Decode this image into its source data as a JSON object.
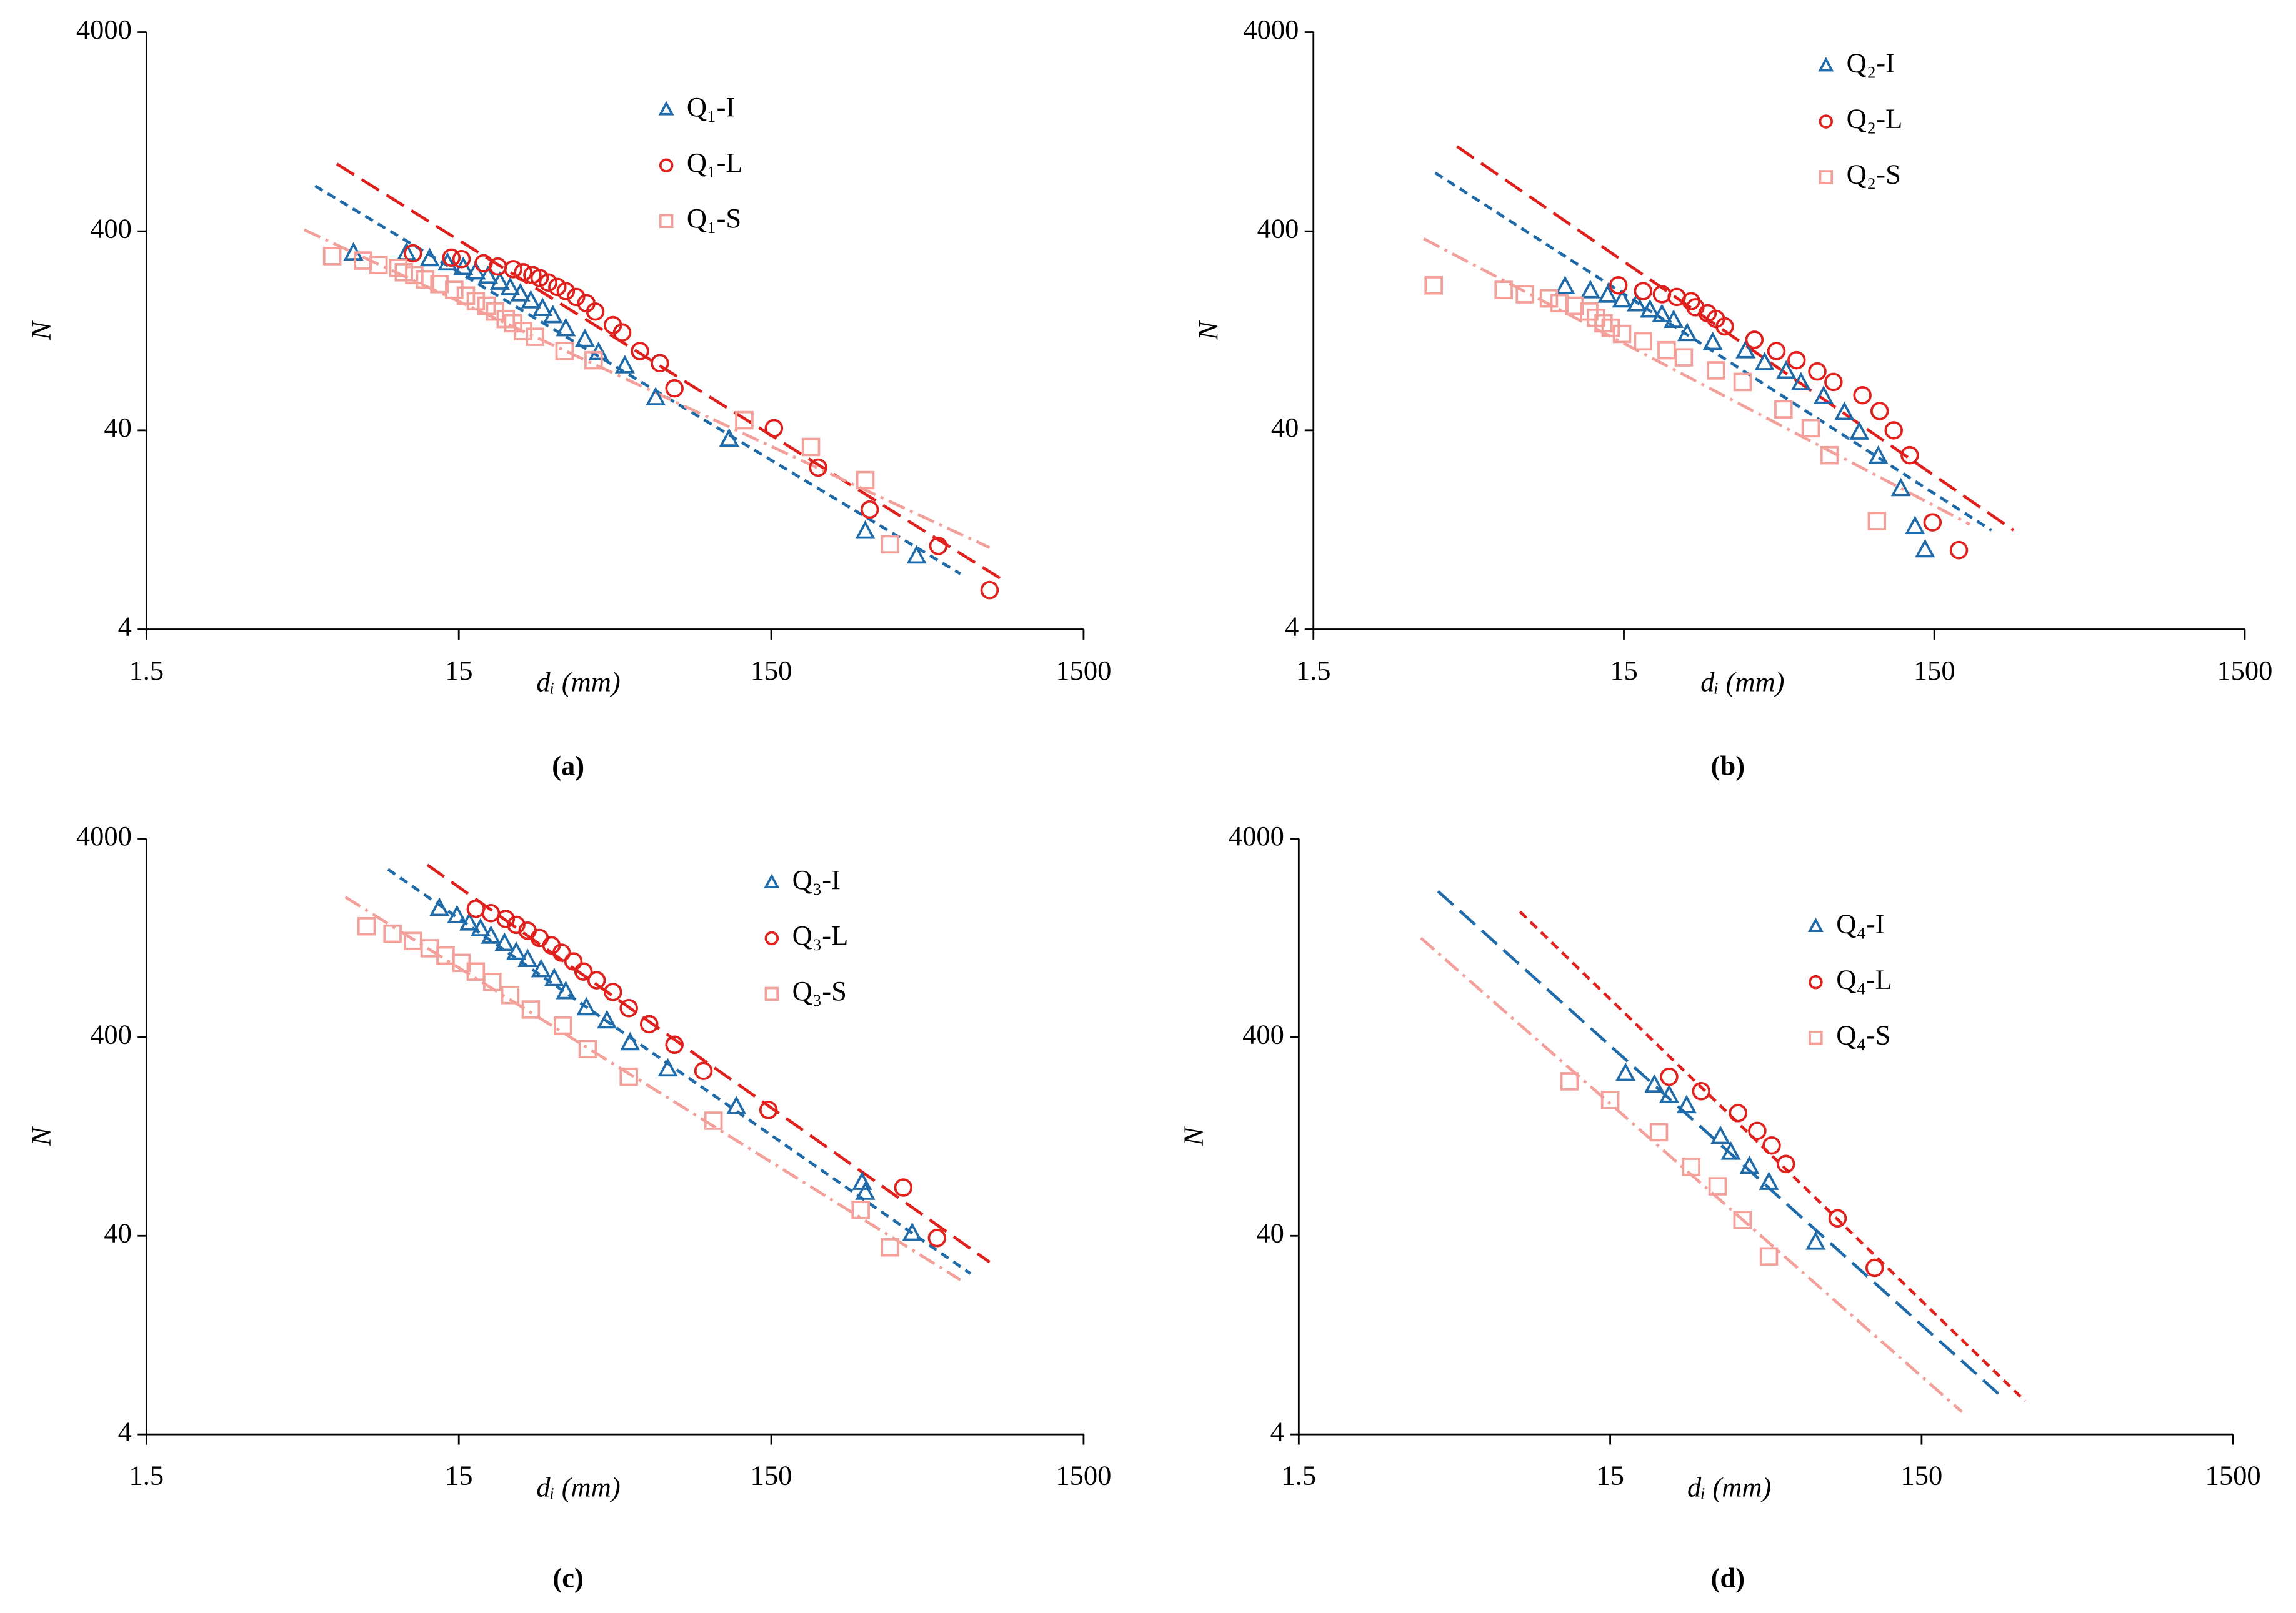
{
  "chart_data": [
    {
      "type": "scatter",
      "label": "(a)",
      "xlabel": "dᵢ (mm)",
      "ylabel": "N",
      "xlog": true,
      "ylog": true,
      "xlim": [
        1.5,
        1500
      ],
      "ylim": [
        4,
        4000
      ],
      "xticks": [
        1.5,
        15,
        150,
        1500
      ],
      "yticks": [
        4,
        40,
        400,
        4000
      ],
      "series": [
        {
          "name": "Q₁-I",
          "color": "#1f6aa8",
          "marker": "triangle",
          "x": [
            6.9,
            10.2,
            12.1,
            13.8,
            15.5,
            17,
            18.6,
            20.3,
            21.9,
            23.6,
            25.5,
            27.8,
            30,
            33,
            38,
            42,
            51,
            64,
            110,
            300,
            438
          ],
          "values": [
            310,
            310,
            290,
            276,
            262,
            249,
            237,
            221,
            207,
            193,
            178,
            163,
            150,
            129,
            114,
            98,
            84,
            58,
            36,
            12.4,
            9.3
          ]
        },
        {
          "name": "Q₁-L",
          "color": "#e0201c",
          "marker": "circle",
          "x": [
            10.7,
            14.2,
            15.3,
            18,
            20,
            22.4,
            24.1,
            25.8,
            27.2,
            29,
            31,
            33,
            35.6,
            38.4,
            41,
            46.7,
            50,
            57,
            66,
            73.5,
            153,
            212,
            310,
            514,
            750
          ],
          "values": [
            310,
            295,
            290,
            276,
            266,
            258,
            249,
            241,
            233,
            221,
            210,
            200,
            187,
            174,
            158,
            135,
            124,
            100,
            87,
            65,
            41,
            26,
            16,
            10.5,
            6.3
          ]
        },
        {
          "name": "Q₁-S",
          "color": "#f4a09a",
          "marker": "square",
          "x": [
            5.9,
            7.4,
            8.3,
            9.6,
            10,
            10.8,
            11.7,
            13,
            14.5,
            15.8,
            17,
            18.4,
            19.6,
            21.2,
            22.4,
            24.1,
            26.3,
            32.7,
            40.5,
            123,
            201,
            300,
            360
          ],
          "values": [
            300,
            285,
            271,
            262,
            249,
            241,
            229,
            217,
            203,
            190,
            178,
            169,
            158,
            145,
            138,
            126,
            118,
            100,
            90,
            45,
            33,
            22.5,
            10.7
          ]
        }
      ],
      "fits": [
        {
          "color": "#1f6aa8",
          "dash": "dashed",
          "x": [
            5.2,
            605
          ],
          "values": [
            676,
            7.6
          ]
        },
        {
          "color": "#e0201c",
          "dash": "long-dash",
          "x": [
            6.1,
            837
          ],
          "values": [
            872,
            7.0
          ]
        },
        {
          "color": "#f4a09a",
          "dash": "dash-dot",
          "x": [
            4.8,
            750
          ],
          "values": [
            407,
            10.3
          ]
        }
      ]
    },
    {
      "type": "scatter",
      "label": "(b)",
      "xlabel": "dᵢ (mm)",
      "ylabel": "N",
      "xlog": true,
      "ylog": true,
      "xlim": [
        1.5,
        1500
      ],
      "ylim": [
        4,
        4000
      ],
      "xticks": [
        1.5,
        15,
        150,
        1500
      ],
      "yticks": [
        4,
        40,
        400,
        4000
      ],
      "series": [
        {
          "name": "Q₂-I",
          "color": "#1f6aa8",
          "marker": "triangle",
          "x": [
            9.7,
            11.7,
            13.3,
            14.8,
            16.5,
            18.2,
            19.9,
            21.7,
            24,
            29,
            37,
            42.6,
            50,
            55.8,
            66,
            77,
            86,
            99,
            117,
            130,
            140
          ],
          "values": [
            210,
            200,
            190,
            180,
            172,
            160,
            152,
            142,
            122,
            110,
            100,
            87,
            79,
            69,
            59,
            49,
            39,
            29.5,
            20.3,
            13.1,
            10
          ]
        },
        {
          "name": "Q₂-L",
          "color": "#e0201c",
          "marker": "circle",
          "x": [
            14.4,
            17.3,
            19.9,
            22.2,
            24.7,
            25.5,
            27.9,
            29.7,
            31.7,
            39.5,
            46.5,
            54,
            63,
            71,
            88,
            100,
            111,
            125,
            148,
            180
          ],
          "values": [
            214,
            200,
            193,
            187,
            178,
            166,
            155,
            145,
            133,
            114,
            100,
            90,
            79,
            70,
            60,
            50,
            40,
            30,
            13.8,
            10
          ]
        },
        {
          "name": "Q₂-S",
          "color": "#f4a09a",
          "marker": "square",
          "x": [
            3.66,
            6.15,
            7.2,
            8.6,
            9.3,
            10.4,
            11.6,
            12.2,
            12.9,
            13.6,
            14.8,
            17.3,
            20.6,
            23.4,
            29.7,
            36.2,
            49,
            60,
            69,
            98
          ],
          "values": [
            214,
            203,
            193,
            184,
            174,
            169,
            158,
            147,
            138,
            131,
            122,
            112,
            101,
            93,
            80,
            70,
            51,
            41,
            30,
            14
          ]
        }
      ],
      "fits": [
        {
          "color": "#1f6aa8",
          "dash": "dashed",
          "x": [
            3.7,
            229
          ],
          "values": [
            787,
            12.6
          ]
        },
        {
          "color": "#e0201c",
          "dash": "long-dash",
          "x": [
            4.35,
            270
          ],
          "values": [
            1067,
            12.6
          ]
        },
        {
          "color": "#f4a09a",
          "dash": "dash-dot",
          "x": [
            3.4,
            195
          ],
          "values": [
            367,
            13.5
          ]
        }
      ]
    },
    {
      "type": "scatter",
      "label": "(c)",
      "xlabel": "dᵢ (mm)",
      "ylabel": "N",
      "xlog": true,
      "ylog": true,
      "xlim": [
        1.5,
        1500
      ],
      "ylim": [
        4,
        4000
      ],
      "xticks": [
        1.5,
        15,
        150,
        1500
      ],
      "yticks": [
        4,
        40,
        400,
        4000
      ],
      "series": [
        {
          "name": "Q₃-I",
          "color": "#1f6aa8",
          "marker": "triangle",
          "x": [
            13,
            14.8,
            16.2,
            17.6,
            19,
            21,
            22.9,
            24.9,
            27.5,
            30.3,
            33,
            38.4,
            44.7,
            53,
            70,
            116,
            293,
            300,
            424
          ],
          "values": [
            1775,
            1630,
            1499,
            1400,
            1286,
            1183,
            1067,
            982,
            872,
            787,
            676,
            561,
            482,
            374,
            276,
            178,
            74,
            66,
            41
          ]
        },
        {
          "name": "Q₃-L",
          "color": "#e0201c",
          "marker": "circle",
          "x": [
            17,
            19,
            21.2,
            22.9,
            24.9,
            27.2,
            29.7,
            32,
            34.9,
            37.6,
            41.4,
            46.7,
            52.5,
            61,
            73.5,
            91,
            147,
            397,
            509
          ],
          "values": [
            1775,
            1687,
            1577,
            1473,
            1377,
            1265,
            1161,
            1067,
            964,
            857,
            775,
            676,
            561,
            466,
            367,
            271,
            172,
            70,
            39
          ]
        },
        {
          "name": "Q₃-S",
          "color": "#f4a09a",
          "marker": "square",
          "x": [
            7.6,
            9.2,
            10.7,
            12.1,
            13.6,
            15.3,
            17,
            19.2,
            21.9,
            25.5,
            32.3,
            38.8,
            52.5,
            98,
            290,
            360
          ],
          "values": [
            1449,
            1330,
            1222,
            1123,
            1032,
            948,
            857,
            760,
            653,
            552,
            458,
            349,
            253,
            152,
            54,
            35
          ]
        }
      ],
      "fits": [
        {
          "color": "#1f6aa8",
          "dash": "dashed",
          "x": [
            8.9,
            652
          ],
          "values": [
            2805,
            25.8
          ]
        },
        {
          "color": "#e0201c",
          "dash": "long-dash",
          "x": [
            11.9,
            750
          ],
          "values": [
            2950,
            29.5
          ]
        },
        {
          "color": "#f4a09a",
          "dash": "dash-dot",
          "x": [
            6.5,
            605
          ],
          "values": [
            2032,
            24
          ]
        }
      ]
    },
    {
      "type": "scatter",
      "label": "(d)",
      "xlabel": "dᵢ (mm)",
      "ylabel": "N",
      "xlog": true,
      "ylog": true,
      "xlim": [
        1.5,
        1500
      ],
      "ylim": [
        4,
        4000
      ],
      "xticks": [
        1.5,
        15,
        150,
        1500
      ],
      "yticks": [
        4,
        40,
        400,
        4000
      ],
      "series": [
        {
          "name": "Q₄-I",
          "color": "#1f6aa8",
          "marker": "triangle",
          "x": [
            16.8,
            20.8,
            23.2,
            26.4,
            33.9,
            36.6,
            42,
            48.5,
            68.5
          ],
          "values": [
            262,
            229,
            203,
            180,
            126,
            105,
            89,
            74,
            37
          ]
        },
        {
          "name": "Q₄-L",
          "color": "#e0201c",
          "marker": "circle",
          "x": [
            23.2,
            29.4,
            38.6,
            44.5,
            49.5,
            55,
            80.6,
            106
          ],
          "values": [
            253,
            214,
            166,
            135,
            114,
            92,
            49,
            27.6
          ]
        },
        {
          "name": "Q₄-S",
          "color": "#f4a09a",
          "marker": "square",
          "x": [
            11.1,
            15,
            21.5,
            27.3,
            33.2,
            39.9,
            48.5
          ],
          "values": [
            240,
            193,
            133,
            89,
            71,
            48,
            31.5
          ]
        }
      ],
      "fits": [
        {
          "color": "#1f6aa8",
          "dash": "long-dash",
          "x": [
            4.2,
            274
          ],
          "values": [
            2173,
            6.1
          ]
        },
        {
          "color": "#e0201c",
          "dash": "dashed",
          "x": [
            7.7,
            322
          ],
          "values": [
            1715,
            5.9
          ]
        },
        {
          "color": "#f4a09a",
          "dash": "dash-dot",
          "x": [
            3.7,
            202
          ],
          "values": [
            1265,
            5.2
          ]
        }
      ]
    }
  ]
}
